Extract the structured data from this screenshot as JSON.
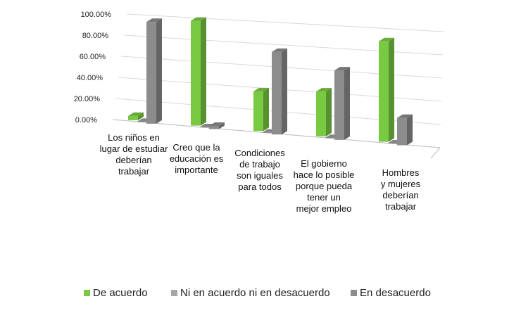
{
  "chart_data": {
    "type": "bar",
    "title": "",
    "xlabel": "",
    "ylabel": "",
    "ylim": [
      0,
      100
    ],
    "yticks": [
      "0.00%",
      "20.00%",
      "40.00%",
      "60.00%",
      "80.00%",
      "100.00%"
    ],
    "categories": [
      [
        "Los niños en",
        "lugar de estudiar",
        "deberían",
        "trabajar"
      ],
      [
        "Creo que la",
        "educación es",
        "importante"
      ],
      [
        "Condiciones",
        "de trabajo",
        "son iguales",
        "para todos"
      ],
      [
        "El gobierno",
        "hace lo posible",
        "porque pueda",
        "tener un",
        "mejor empleo"
      ],
      [
        "Hombres",
        "y mujeres",
        "deberían",
        "trabajar"
      ]
    ],
    "series": [
      {
        "name": "De acuerdo",
        "color": "#7ac943",
        "values": [
          4,
          97,
          36,
          40,
          88
        ]
      },
      {
        "name": "Ni en acuerdo ni en desacuerdo",
        "color": "#a6a6a6",
        "values": [
          0,
          0,
          0,
          0,
          0
        ]
      },
      {
        "name": "En desacuerdo",
        "color": "#8c8c8c",
        "values": [
          96,
          3,
          75,
          62,
          24
        ]
      }
    ],
    "grid": true,
    "legend_position": "bottom"
  }
}
